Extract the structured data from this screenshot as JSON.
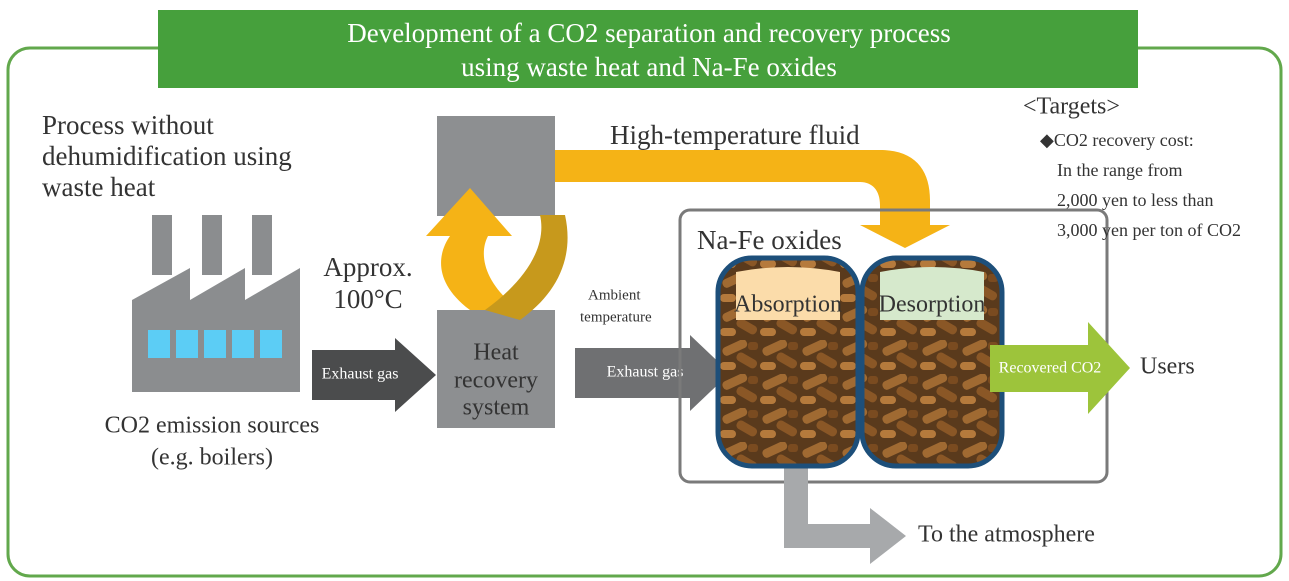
{
  "title": {
    "lines": [
      "Development of a CO2 separation and recovery process",
      "using waste heat and Na-Fe oxides"
    ]
  },
  "left_note": {
    "lines": [
      "Process without",
      "dehumidification using",
      "waste heat"
    ]
  },
  "source": {
    "lines": [
      "CO2 emission sources",
      "(e.g. boilers)"
    ]
  },
  "temperature": {
    "lines": [
      "Approx.",
      "100°C"
    ]
  },
  "arrows": {
    "exhaust_gas_1": "Exhaust gas",
    "exhaust_gas_2": "Exhaust gas",
    "high_temp": "High-temperature fluid",
    "ambient": {
      "lines": [
        "Ambient",
        "temperature"
      ]
    },
    "recovered": "Recovered CO2",
    "atmosphere": "To the atmosphere"
  },
  "heat_recovery": {
    "lines": [
      "Heat",
      "recovery",
      "system"
    ]
  },
  "oxides": {
    "label": "Na-Fe oxides",
    "absorption": "Absorption",
    "desorption": "Desorption"
  },
  "users": "Users",
  "targets": {
    "heading": "<Targets>",
    "lines": [
      "◆CO2 recovery cost:",
      "In the range from",
      "2,000 yen to less than",
      "3,000 yen per ton of CO2"
    ]
  }
}
